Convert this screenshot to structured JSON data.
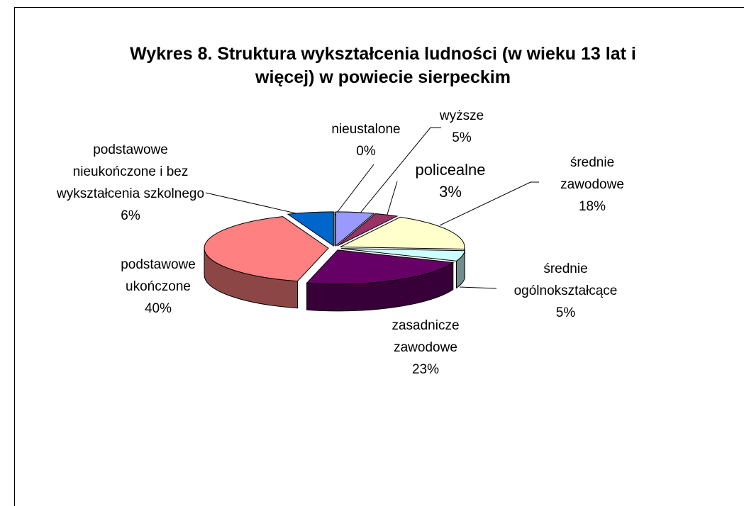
{
  "chart_data": {
    "type": "pie",
    "title": "Wykres 8. Struktura wykształcenia ludności (w wieku 13 lat i więcej) w powiecie sierpeckim",
    "categories": [
      "wyższe",
      "policealne",
      "średnie zawodowe",
      "średnie ogólnokształcące",
      "zasadnicze zawodowe",
      "podstawowe ukończone",
      "podstawowe nieukończone i bez wykształcenia szkolnego",
      "nieustalone"
    ],
    "values": [
      5,
      3,
      18,
      5,
      23,
      40,
      6,
      0
    ],
    "value_labels": [
      "5%",
      "3%",
      "18%",
      "5%",
      "23%",
      "40%",
      "6%",
      "0%"
    ],
    "colors": [
      "#9999ff",
      "#993366",
      "#ffffcc",
      "#ccffff",
      "#660066",
      "#ff8080",
      "#0066cc",
      "#ccccff"
    ]
  }
}
